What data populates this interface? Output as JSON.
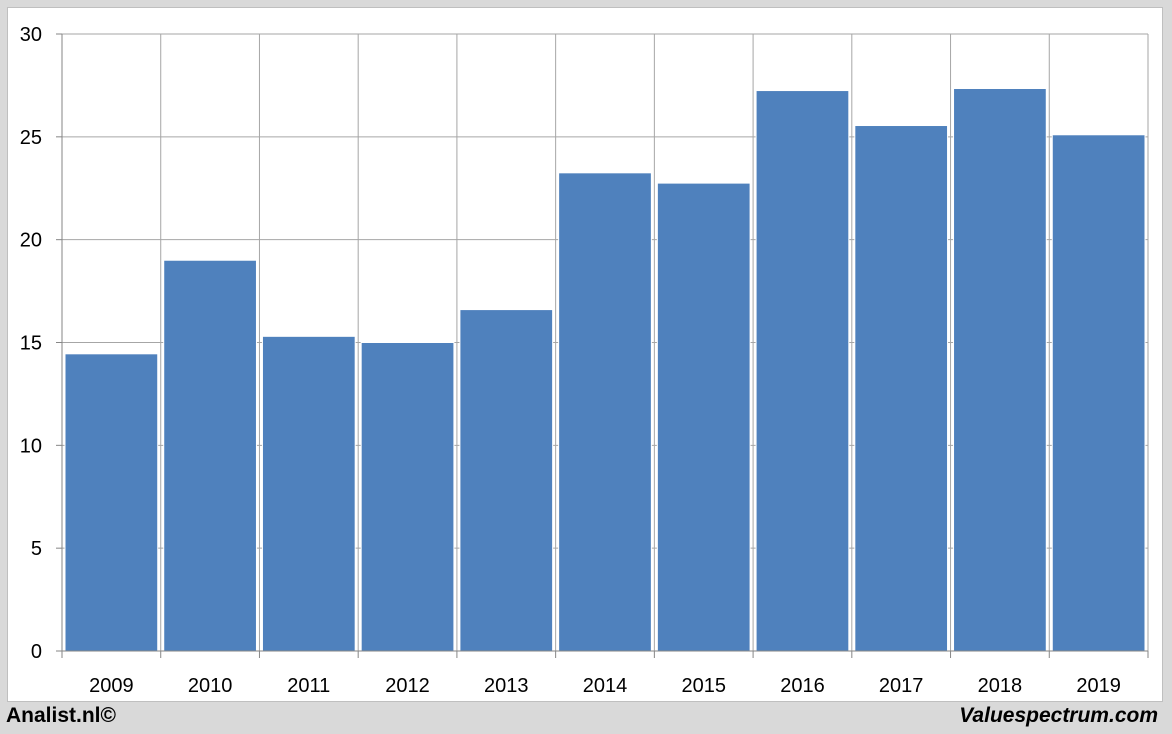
{
  "chart_data": {
    "type": "bar",
    "categories": [
      "2009",
      "2010",
      "2011",
      "2012",
      "2013",
      "2014",
      "2015",
      "2016",
      "2017",
      "2018",
      "2019"
    ],
    "values": [
      14.45,
      19.0,
      15.3,
      15.0,
      16.6,
      23.25,
      22.75,
      27.25,
      25.55,
      27.35,
      25.1
    ],
    "ylim": [
      0,
      30
    ],
    "yticks": [
      0,
      5,
      10,
      15,
      20,
      25,
      30
    ],
    "grid": true,
    "title": "",
    "xlabel": "",
    "ylabel": "",
    "bar_color": "#4f81bd",
    "grid_color": "#a6a6a6"
  },
  "footer": {
    "left": "Analist.nl©",
    "right": "Valuespectrum.com"
  }
}
